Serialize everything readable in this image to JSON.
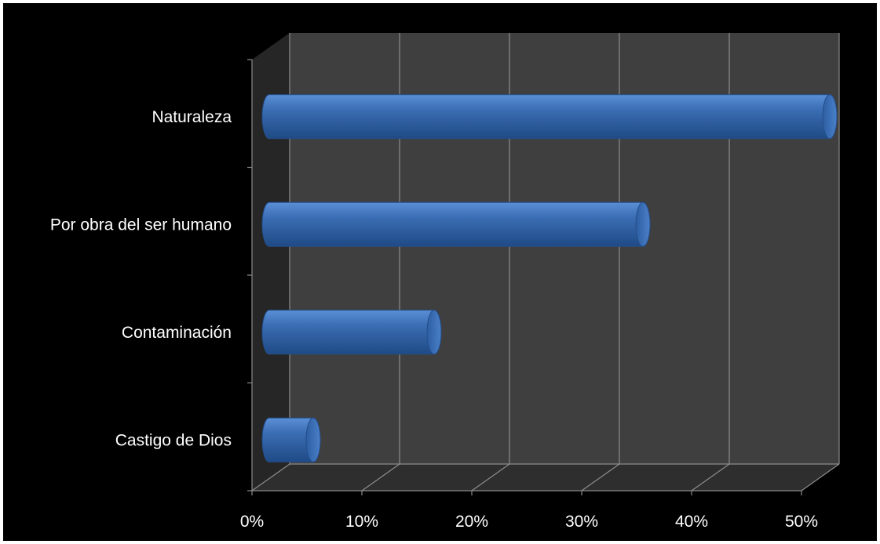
{
  "chart_data": {
    "type": "bar",
    "orientation": "horizontal",
    "style": "3d-cylinder",
    "categories": [
      "Naturaleza",
      "Por obra del ser humano",
      "Contaminación",
      "Castigo de Dios"
    ],
    "values": [
      51,
      34,
      15,
      4
    ],
    "value_unit": "%",
    "xlim": [
      0,
      50
    ],
    "x_ticks": [
      "0%",
      "10%",
      "20%",
      "30%",
      "40%",
      "50%"
    ],
    "title": "",
    "xlabel": "",
    "ylabel": "",
    "grid": true,
    "legend": "none",
    "colors": {
      "background": "#000000",
      "plot_wall": "#3f3f3f",
      "plot_floor": "#2e2e2e",
      "side_wall": "#262626",
      "gridline": "#8c8c8c",
      "bar": "#3a6db3",
      "bar_dark": "#244f8c",
      "bar_light": "#5a8fd6",
      "text": "#ffffff"
    }
  }
}
